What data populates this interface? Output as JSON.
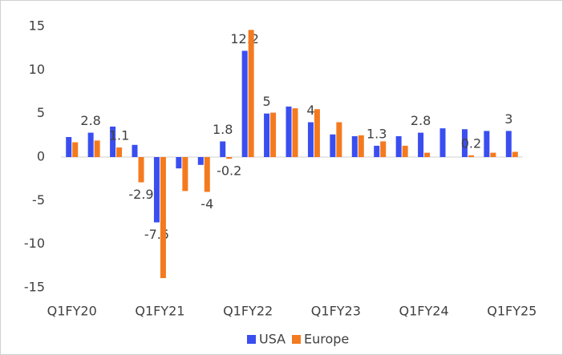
{
  "chart_data": {
    "type": "bar",
    "categories": [
      "Q1FY20",
      null,
      null,
      null,
      "Q1FY21",
      null,
      null,
      null,
      "Q1FY22",
      null,
      null,
      null,
      "Q1FY23",
      null,
      null,
      null,
      "Q1FY24",
      null,
      null,
      null,
      "Q1FY25"
    ],
    "series": [
      {
        "name": "USA",
        "color": "#3a4ef0",
        "values": [
          2.3,
          2.8,
          3.5,
          1.4,
          -7.5,
          -1.3,
          -0.9,
          1.8,
          12.2,
          5,
          5.8,
          4,
          2.6,
          2.4,
          1.3,
          2.4,
          2.8,
          3.3,
          3.2,
          3.0,
          3
        ],
        "value_labels": [
          null,
          "2.8",
          null,
          null,
          "-7.5",
          null,
          null,
          "1.8",
          "12.2",
          "5",
          null,
          "4",
          null,
          null,
          "1.3",
          null,
          "2.8",
          null,
          null,
          null,
          "3"
        ]
      },
      {
        "name": "Europe",
        "color": "#f47a1f",
        "values": [
          1.7,
          1.9,
          1.1,
          -2.9,
          -13.9,
          -3.9,
          -4,
          -0.2,
          14.6,
          5.1,
          5.6,
          5.5,
          4.0,
          2.5,
          1.8,
          1.3,
          0.5,
          0,
          0.2,
          0.5,
          0.6
        ],
        "value_labels": [
          null,
          null,
          "1.1",
          "-2.9",
          null,
          null,
          "-4",
          "-0.2",
          null,
          null,
          null,
          null,
          null,
          null,
          null,
          null,
          null,
          null,
          "0.2",
          null,
          null
        ]
      }
    ],
    "ylim": [
      -15,
      15
    ],
    "yticks": [
      -15,
      -10,
      -5,
      0,
      5,
      10,
      15
    ],
    "grid": false,
    "legend": "bottom"
  }
}
